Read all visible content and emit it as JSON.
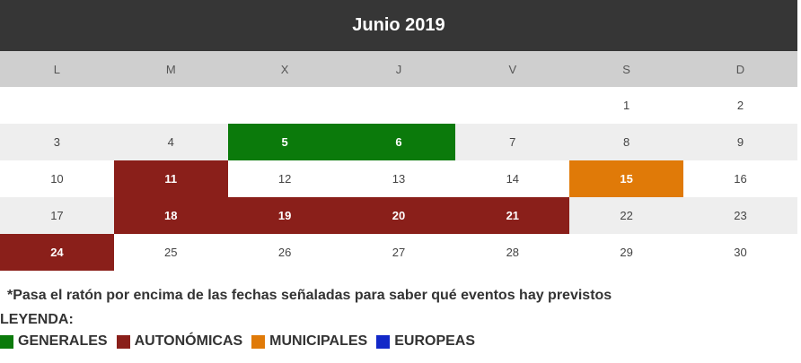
{
  "calendar": {
    "title": "Junio 2019",
    "day_names": [
      "L",
      "M",
      "X",
      "J",
      "V",
      "S",
      "D"
    ],
    "weeks": [
      [
        "",
        "",
        "",
        "",
        "",
        "1",
        "2"
      ],
      [
        "3",
        "4",
        "5",
        "6",
        "7",
        "8",
        "9"
      ],
      [
        "10",
        "11",
        "12",
        "13",
        "14",
        "15",
        "16"
      ],
      [
        "17",
        "18",
        "19",
        "20",
        "21",
        "22",
        "23"
      ],
      [
        "24",
        "25",
        "26",
        "27",
        "28",
        "29",
        "30"
      ]
    ],
    "events": {
      "5": "generales",
      "6": "generales",
      "11": "autonomicas",
      "15": "municipales",
      "18": "autonomicas",
      "19": "autonomicas",
      "20": "autonomicas",
      "21": "autonomicas",
      "24": "autonomicas"
    }
  },
  "note": "*Pasa el ratón por encima de las fechas señaladas para saber qué eventos hay previstos",
  "legend": {
    "title": "LEYENDA:",
    "items": [
      {
        "key": "generales",
        "label": "GENERALES",
        "color": "#0b7a0b"
      },
      {
        "key": "autonomicas",
        "label": "AUTONÓMICAS",
        "color": "#8a1f1a"
      },
      {
        "key": "municipales",
        "label": "MUNICIPALES",
        "color": "#e07a08"
      },
      {
        "key": "europeas",
        "label": "EUROPEAS",
        "color": "#1228c8"
      }
    ]
  }
}
